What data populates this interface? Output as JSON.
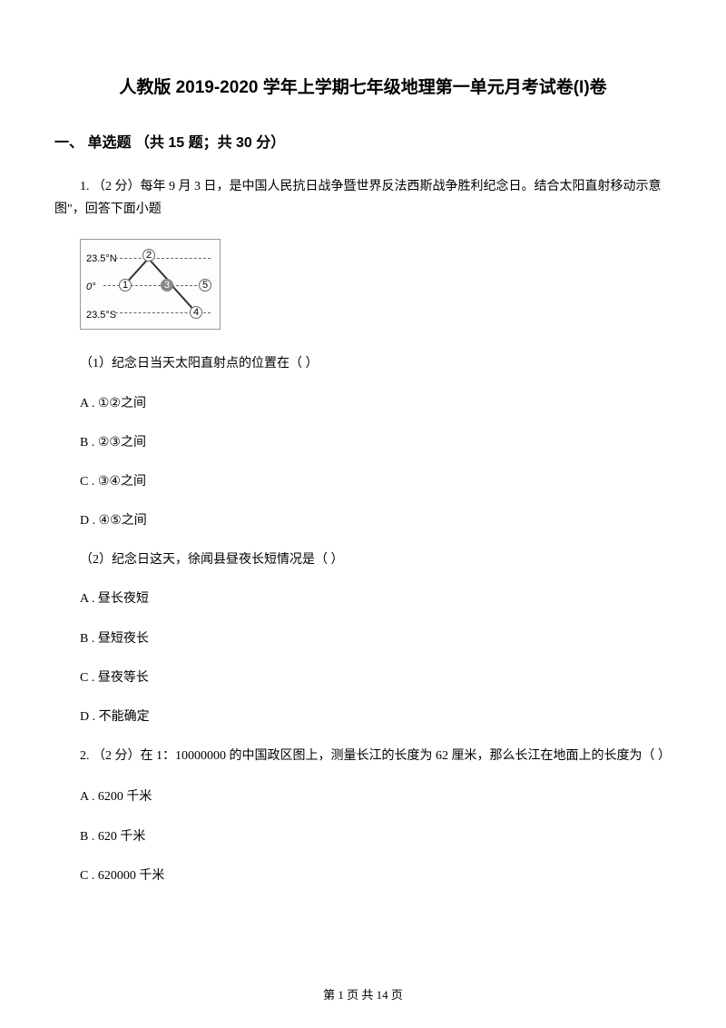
{
  "title": "人教版 2019-2020 学年上学期七年级地理第一单元月考试卷(I)卷",
  "section": {
    "label": "一、 单选题 （共 15 题；共 30 分）"
  },
  "diagram": {
    "lat_n": "23.5°N",
    "lat_0": "0°",
    "lat_s": "23.5°S"
  },
  "q1": {
    "intro": "1.  （2 分）每年 9 月 3  日，是中国人民抗日战争暨世界反法西斯战争胜利纪念日。结合太阳直射移动示意图\"，回答下面小题",
    "sub1": "（1）纪念日当天太阳直射点的位置在（    ）",
    "optA1": "A . ①②之间",
    "optB1": "B . ②③之间",
    "optC1": "C . ③④之间",
    "optD1": "D . ④⑤之间",
    "sub2": "（2）纪念日这天，徐闻县昼夜长短情况是（    ）",
    "optA2": "A . 昼长夜短",
    "optB2": "B . 昼短夜长",
    "optC2": "C . 昼夜等长",
    "optD2": "D . 不能确定"
  },
  "q2": {
    "intro": "2.  （2 分）在 1：10000000 的中国政区图上，测量长江的长度为 62 厘米，那么长江在地面上的长度为（    ）",
    "optA": "A . 6200 千米",
    "optB": "B . 620 千米",
    "optC": "C . 620000 千米"
  },
  "footer": "第 1 页 共 14 页"
}
